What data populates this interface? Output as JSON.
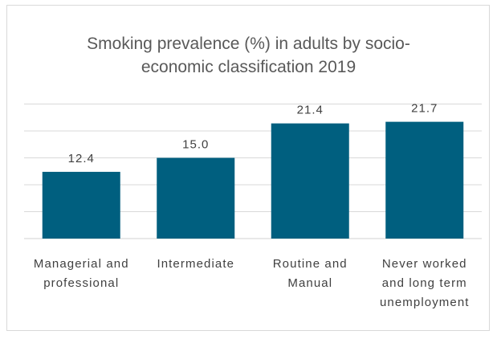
{
  "chart_data": {
    "type": "bar",
    "title_lines": [
      "Smoking prevalence (%) in adults by socio-",
      "economic classification 2019"
    ],
    "categories": [
      [
        "Managerial and",
        "professional"
      ],
      [
        "Intermediate"
      ],
      [
        "Routine and",
        "Manual"
      ],
      [
        "Never worked",
        "and long term",
        "unemployment"
      ]
    ],
    "values": [
      12.4,
      15.0,
      21.4,
      21.7
    ],
    "data_labels": [
      "12.4",
      "15.0",
      "21.4",
      "21.7"
    ],
    "ylim": [
      0,
      25
    ],
    "grid": true,
    "legend": "none",
    "bar_color": "#005f7f",
    "grid_color": "#d9d9d9"
  }
}
